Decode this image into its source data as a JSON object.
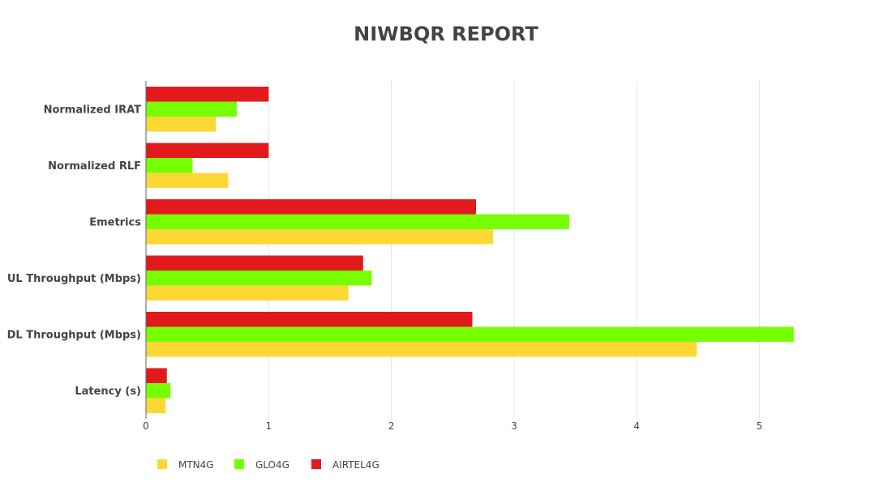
{
  "chart_data": {
    "type": "bar",
    "orientation": "horizontal",
    "title": "NIWBQR REPORT",
    "categories": [
      "Normalized IRAT",
      "Normalized RLF",
      "Emetrics",
      "UL Throughput (Mbps)",
      "DL Throughput (Mbps)",
      "Latency (s)"
    ],
    "series": [
      {
        "name": "AIRTEL4G",
        "color": "#e31a1c",
        "values": [
          1.0,
          1.0,
          2.69,
          1.77,
          2.66,
          0.17
        ]
      },
      {
        "name": "GLO4G",
        "color": "#76ff03",
        "values": [
          0.74,
          0.38,
          3.45,
          1.84,
          5.28,
          0.2
        ]
      },
      {
        "name": "MTN4G",
        "color": "#fdd835",
        "values": [
          0.57,
          0.67,
          2.83,
          1.65,
          4.49,
          0.16
        ]
      }
    ],
    "xlim": [
      0,
      5.5
    ],
    "x_ticks": [
      "0",
      "1",
      "2",
      "3",
      "4",
      "5"
    ],
    "grid": true,
    "legend_position": "bottom-left",
    "legend_order": [
      "MTN4G",
      "GLO4G",
      "AIRTEL4G"
    ]
  }
}
